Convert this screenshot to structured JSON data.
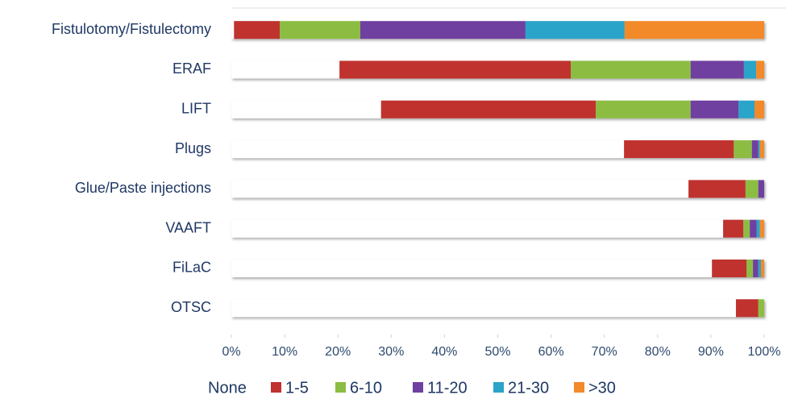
{
  "chart_data": {
    "type": "stacked_bar_horizontal",
    "categories": [
      "Fistulotomy/Fistulectomy",
      "ERAF",
      "LIFT",
      "Plugs",
      "Glue/Paste injections",
      "VAAFT",
      "FiLaC",
      "OTSC"
    ],
    "series": [
      {
        "name": "None",
        "color": "#ffffff",
        "values": [
          0.5,
          20.3,
          28.1,
          73.7,
          85.8,
          92.3,
          90.2,
          94.7
        ]
      },
      {
        "name": "1-5",
        "color": "#c0312f",
        "values": [
          8.6,
          43.4,
          40.3,
          20.6,
          10.7,
          3.8,
          6.5,
          4.2
        ]
      },
      {
        "name": "6-10",
        "color": "#8cbd43",
        "values": [
          15.1,
          22.5,
          17.8,
          3.4,
          2.4,
          1.2,
          1.2,
          1.1
        ]
      },
      {
        "name": "11-20",
        "color": "#7040a0",
        "values": [
          31,
          10,
          9,
          1.2,
          1.1,
          1.3,
          1.0,
          0
        ]
      },
      {
        "name": "21-30",
        "color": "#2aa4c9",
        "values": [
          18.6,
          2.3,
          3,
          0.3,
          0,
          0.6,
          0.5,
          0
        ]
      },
      {
        "name": ">30",
        "color": "#f28a2a",
        "values": [
          26.2,
          1.5,
          1.8,
          0.8,
          0,
          0.8,
          0.6,
          0
        ]
      }
    ],
    "xlim": [
      0,
      100
    ],
    "xticks": [
      {
        "value": 0,
        "label": "0%"
      },
      {
        "value": 10,
        "label": "10%"
      },
      {
        "value": 20,
        "label": "20%"
      },
      {
        "value": 30,
        "label": "30%"
      },
      {
        "value": 40,
        "label": "40%"
      },
      {
        "value": 50,
        "label": "50%"
      },
      {
        "value": 60,
        "label": "60%"
      },
      {
        "value": 70,
        "label": "70%"
      },
      {
        "value": 80,
        "label": "80%"
      },
      {
        "value": 90,
        "label": "90%"
      },
      {
        "value": 100,
        "label": "100%"
      }
    ],
    "grid": false,
    "legend": "bottom"
  }
}
